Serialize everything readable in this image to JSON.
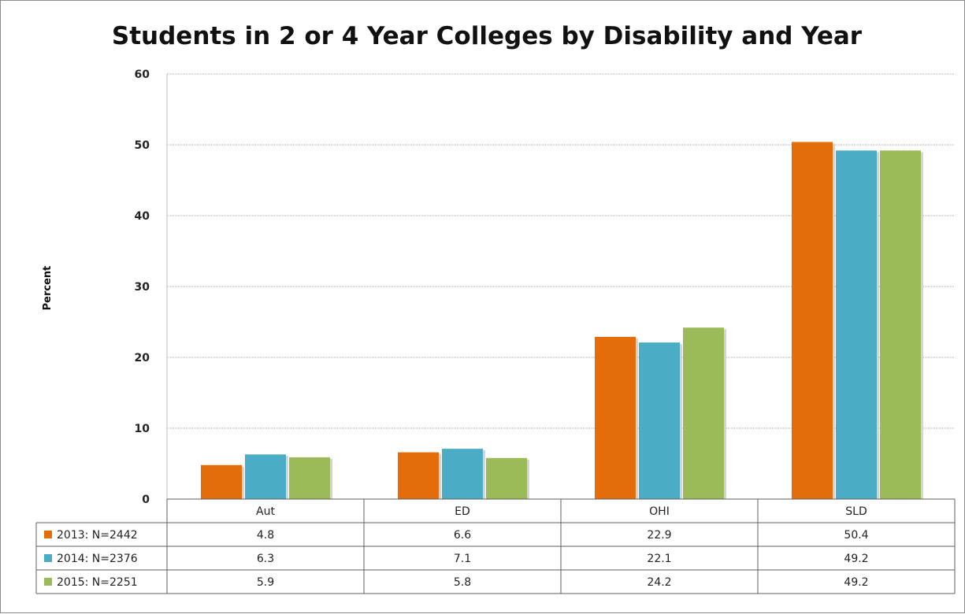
{
  "chart_data": {
    "type": "bar",
    "title": "Students in 2 or 4 Year Colleges by Disability and Year",
    "ylabel": "Percent",
    "xlabel": "",
    "ylim": [
      0,
      60
    ],
    "yticks": [
      0,
      10,
      20,
      30,
      40,
      50,
      60
    ],
    "grid": true,
    "legend_placement": "data-table-left",
    "categories": [
      "Aut",
      "ED",
      "OHI",
      "SLD"
    ],
    "series": [
      {
        "name": "2013: N=2442",
        "color": "#e46c0a",
        "values": [
          4.8,
          6.6,
          22.9,
          50.4
        ],
        "labels": [
          "4.8",
          "6.6",
          "22.9",
          "50.4"
        ]
      },
      {
        "name": "2014: N=2376",
        "color": "#4bacc6",
        "values": [
          6.3,
          7.1,
          22.1,
          49.2
        ],
        "labels": [
          "6.3",
          "7.1",
          "22.1",
          "49.2"
        ]
      },
      {
        "name": "2015: N=2251",
        "color": "#9bbb59",
        "values": [
          5.9,
          5.8,
          24.2,
          49.2
        ],
        "labels": [
          "5.9",
          "5.8",
          "24.2",
          "49.2"
        ]
      }
    ]
  }
}
